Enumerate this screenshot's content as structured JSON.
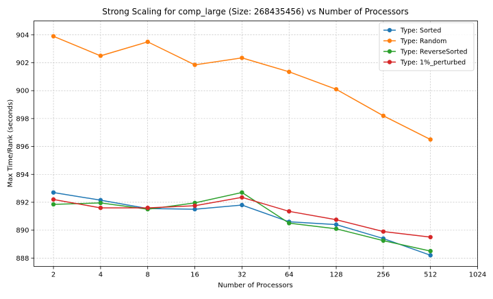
{
  "chart_data": {
    "type": "line",
    "title": "Strong Scaling for comp_large (Size: 268435456) vs Number of Processors",
    "xlabel": "Number of Processors",
    "ylabel": "Max Time/Rank (seconds)",
    "x_scale": "log2",
    "x_ticks": [
      "2",
      "4",
      "8",
      "16",
      "32",
      "64",
      "128",
      "256",
      "512",
      "1024"
    ],
    "y_ticks": [
      "888",
      "890",
      "892",
      "894",
      "896",
      "898",
      "900",
      "902",
      "904"
    ],
    "xlim": [
      1.5,
      1024
    ],
    "ylim": [
      887.4,
      905.0
    ],
    "grid": true,
    "legend_position": "top-right",
    "x": [
      2,
      4,
      8,
      16,
      32,
      64,
      128,
      256,
      512
    ],
    "series": [
      {
        "name": "Type: Sorted",
        "color": "#1f77b4",
        "values": [
          892.7,
          892.15,
          891.55,
          891.5,
          891.8,
          890.6,
          890.4,
          889.4,
          888.2
        ]
      },
      {
        "name": "Type: Random",
        "color": "#ff7f0e",
        "values": [
          903.9,
          902.5,
          903.5,
          901.85,
          902.35,
          901.35,
          900.1,
          898.2,
          896.5
        ]
      },
      {
        "name": "Type: ReverseSorted",
        "color": "#2ca02c",
        "values": [
          891.85,
          891.95,
          891.5,
          891.95,
          892.7,
          890.5,
          890.1,
          889.25,
          888.5
        ]
      },
      {
        "name": "Type: 1%_perturbed",
        "color": "#d62728",
        "values": [
          892.2,
          891.6,
          891.6,
          891.75,
          892.35,
          891.35,
          890.75,
          889.9,
          889.5
        ]
      }
    ]
  }
}
